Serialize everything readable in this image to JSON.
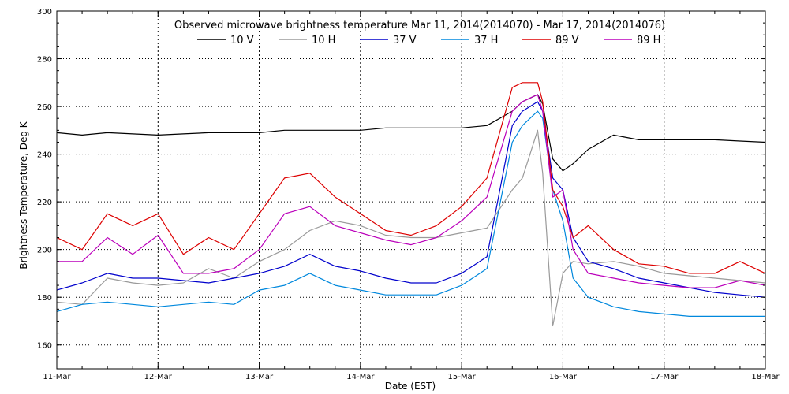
{
  "chart_data": {
    "type": "line",
    "title": "Observed microwave brightness temperature Mar 11, 2014(2014070) - Mar 17, 2014(2014076)",
    "xlabel": "Date (EST)",
    "ylabel": "Brightness Temperature, Deg K",
    "xlim": [
      0,
      7
    ],
    "ylim": [
      150,
      300
    ],
    "x_tick_values": [
      0,
      1,
      2,
      3,
      4,
      5,
      6,
      7
    ],
    "x_tick_labels": [
      "11-Mar",
      "12-Mar",
      "13-Mar",
      "14-Mar",
      "15-Mar",
      "16-Mar",
      "17-Mar",
      "18-Mar"
    ],
    "y_ticks": [
      160,
      180,
      200,
      220,
      240,
      260,
      280,
      300
    ],
    "grid": true,
    "legend_position": "top-center",
    "x": [
      0.0,
      0.25,
      0.5,
      0.75,
      1.0,
      1.25,
      1.5,
      1.75,
      2.0,
      2.25,
      2.5,
      2.75,
      3.0,
      3.25,
      3.5,
      3.75,
      4.0,
      4.25,
      4.5,
      4.6,
      4.75,
      4.8,
      4.9,
      5.0,
      5.1,
      5.25,
      5.5,
      5.75,
      6.0,
      6.25,
      6.5,
      6.75,
      7.0
    ],
    "series": [
      {
        "name": "10 V",
        "color": "#000000",
        "values": [
          249,
          248,
          249,
          248.5,
          248,
          248.5,
          249,
          249,
          249,
          250,
          250,
          250,
          250,
          251,
          251,
          251,
          251,
          252,
          258,
          262,
          265,
          261,
          238,
          233,
          236,
          242,
          248,
          246,
          246,
          246,
          246,
          245.5,
          245
        ]
      },
      {
        "name": "10 H",
        "color": "#9a9a9a",
        "values": [
          178,
          177,
          188,
          186,
          185,
          186,
          192,
          188,
          195,
          200,
          208,
          212,
          210,
          206,
          205,
          205,
          207,
          209,
          225,
          230,
          250,
          232,
          168,
          190,
          195,
          194,
          195,
          193,
          190,
          189,
          188,
          187,
          186
        ]
      },
      {
        "name": "37 V",
        "color": "#0000cc",
        "values": [
          183,
          186,
          190,
          188,
          188,
          187,
          186,
          188,
          190,
          193,
          198,
          193,
          191,
          188,
          186,
          186,
          190,
          197,
          252,
          258,
          262,
          258,
          230,
          225,
          205,
          195,
          192,
          188,
          186,
          184,
          182,
          181,
          180
        ]
      },
      {
        "name": "37 H",
        "color": "#0088dd",
        "values": [
          174,
          177,
          178,
          177,
          176,
          177,
          178,
          177,
          183,
          185,
          190,
          185,
          183,
          181,
          181,
          181,
          185,
          192,
          245,
          252,
          258,
          255,
          225,
          212,
          188,
          180,
          176,
          174,
          173,
          172,
          172,
          172,
          172
        ]
      },
      {
        "name": "89 V",
        "color": "#dd0000",
        "values": [
          205,
          200,
          215,
          210,
          215,
          198,
          205,
          200,
          215,
          230,
          232,
          222,
          215,
          208,
          206,
          210,
          218,
          230,
          268,
          270,
          270,
          262,
          225,
          218,
          205,
          210,
          200,
          194,
          193,
          190,
          190,
          195,
          190
        ]
      },
      {
        "name": "89 H",
        "color": "#bb00bb",
        "values": [
          195,
          195,
          205,
          198,
          206,
          190,
          190,
          192,
          200,
          215,
          218,
          210,
          207,
          204,
          202,
          205,
          212,
          222,
          258,
          262,
          265,
          258,
          222,
          225,
          200,
          190,
          188,
          186,
          185,
          184,
          184,
          187,
          185
        ]
      }
    ]
  }
}
